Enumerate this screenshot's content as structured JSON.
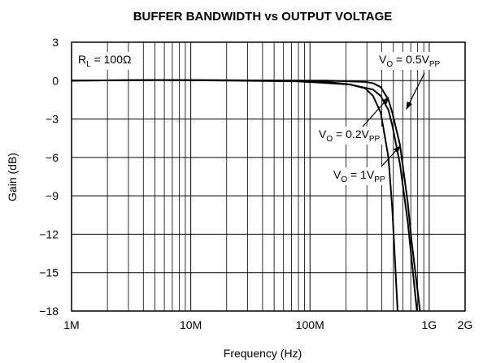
{
  "chart_data": {
    "type": "line",
    "title": "BUFFER BANDWIDTH vs OUTPUT VOLTAGE",
    "x_label": "Frequency (Hz)",
    "y_label": "Gain (dB)",
    "x_log": true,
    "grid": true,
    "xlim": [
      1000000.0,
      2000000000.0
    ],
    "ylim": [
      -18,
      3
    ],
    "xticks": [
      {
        "value": 1000000.0,
        "label": "1M"
      },
      {
        "value": 10000000.0,
        "label": "10M"
      },
      {
        "value": 100000000.0,
        "label": "100M"
      },
      {
        "value": 1000000000.0,
        "label": "1G"
      },
      {
        "value": 2000000000.0,
        "label": "2G"
      }
    ],
    "x_minor_grid": [
      2000000.0,
      3000000.0,
      4000000.0,
      5000000.0,
      6000000.0,
      7000000.0,
      8000000.0,
      9000000.0,
      20000000.0,
      30000000.0,
      40000000.0,
      50000000.0,
      60000000.0,
      70000000.0,
      80000000.0,
      90000000.0,
      200000000.0,
      300000000.0,
      400000000.0,
      500000000.0,
      600000000.0,
      700000000.0,
      800000000.0,
      900000000.0
    ],
    "yticks": [
      3,
      0,
      {
        "value": -3,
        "label": "−3"
      },
      {
        "value": -6,
        "label": "−6"
      },
      {
        "value": -9,
        "label": "−9"
      },
      {
        "value": -12,
        "label": "−12"
      },
      {
        "value": -15,
        "label": "−15"
      },
      {
        "value": -18,
        "label": "−18"
      }
    ],
    "series": [
      {
        "name": [
          "V",
          "O",
          " = 1V",
          "PP"
        ],
        "color": "#000000",
        "x": [
          1000000.0,
          5300000.0,
          77000000.0,
          139000000.0,
          216000000.0,
          291000000.0,
          338000000.0,
          392000000.0,
          455000000.0,
          490000000.0,
          543000000.0
        ],
        "values": [
          0,
          0.05,
          0,
          -0.1,
          -0.3,
          -0.6,
          -1.2,
          -2.5,
          -6,
          -10,
          -18
        ]
      },
      {
        "name": [
          "V",
          "O",
          " = 0.2V",
          "PP"
        ],
        "color": "#000000",
        "x": [
          1000000.0,
          5300000.0,
          77000000.0,
          216000000.0,
          338000000.0,
          392000000.0,
          455000000.0,
          490000000.0,
          568000000.0,
          660000000.0,
          789000000.0
        ],
        "values": [
          0,
          0.05,
          -0.05,
          -0.3,
          -0.7,
          -1.2,
          -2.3,
          -3.5,
          -6.5,
          -11,
          -18
        ]
      },
      {
        "name": [
          "V",
          "O",
          " = 0.5V",
          "PP"
        ],
        "color": "#000000",
        "x": [
          1000000.0,
          5300000.0,
          139000000.0,
          291000000.0,
          338000000.0,
          392000000.0,
          455000000.0,
          490000000.0,
          568000000.0,
          660000000.0,
          711000000.0,
          837000000.0
        ],
        "values": [
          0,
          0.05,
          0,
          -0.1,
          -0.2,
          -0.5,
          -1.5,
          -2.5,
          -5,
          -9.5,
          -12.5,
          -18
        ]
      }
    ],
    "annotations": [
      [
        "R",
        "L",
        " = 100Ω"
      ]
    ]
  }
}
